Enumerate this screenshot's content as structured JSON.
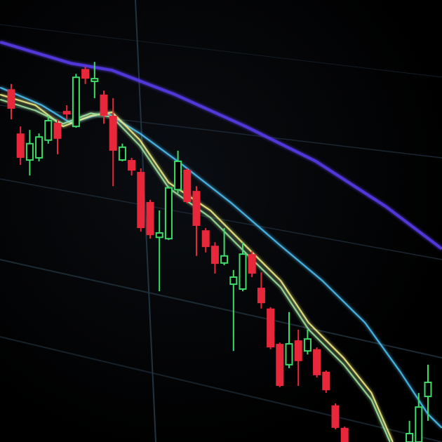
{
  "chart_data": {
    "type": "candlestick",
    "title": "",
    "xlabel": "",
    "ylabel": "",
    "ylim": [
      0,
      100
    ],
    "grid": true,
    "colors": {
      "up": "#3ddc6a",
      "down": "#e8283a",
      "background": "#000000",
      "grid": "#1c2a33"
    },
    "candles": [
      {
        "o": 79.8,
        "h": 81,
        "l": 73,
        "c": 75.4
      },
      {
        "o": 69.8,
        "h": 71.4,
        "l": 62.7,
        "c": 64.3
      },
      {
        "o": 63.8,
        "h": 70.6,
        "l": 60.3,
        "c": 67.5
      },
      {
        "o": 64.3,
        "h": 69.8,
        "l": 63.5,
        "c": 69
      },
      {
        "o": 68.3,
        "h": 73.8,
        "l": 67.5,
        "c": 72.7
      },
      {
        "o": 72.2,
        "h": 73,
        "l": 65.1,
        "c": 68.6
      },
      {
        "o": 74.9,
        "h": 76.2,
        "l": 73,
        "c": 74.1
      },
      {
        "o": 71.4,
        "h": 83.3,
        "l": 71.1,
        "c": 82.5
      },
      {
        "o": 84.4,
        "h": 84.9,
        "l": 81,
        "c": 82.2
      },
      {
        "o": 81.6,
        "h": 86,
        "l": 77.8,
        "c": 82.2
      },
      {
        "o": 78.6,
        "h": 79.5,
        "l": 72,
        "c": 73.8
      },
      {
        "o": 73.8,
        "h": 77.8,
        "l": 57.9,
        "c": 65.9
      },
      {
        "o": 63.8,
        "h": 67.5,
        "l": 63.5,
        "c": 66.7
      },
      {
        "o": 63.8,
        "h": 64.3,
        "l": 60.3,
        "c": 61.4
      },
      {
        "o": 61.1,
        "h": 61.9,
        "l": 47.6,
        "c": 48.4
      },
      {
        "o": 54.3,
        "h": 54.8,
        "l": 46,
        "c": 46.8
      },
      {
        "o": 46.3,
        "h": 52.4,
        "l": 34.1,
        "c": 47.3
      },
      {
        "o": 46,
        "h": 57.9,
        "l": 45.7,
        "c": 57.5
      },
      {
        "o": 57.1,
        "h": 65.9,
        "l": 56.3,
        "c": 63.5
      },
      {
        "o": 61.6,
        "h": 61.9,
        "l": 54,
        "c": 54.3
      },
      {
        "o": 56.8,
        "h": 57.9,
        "l": 42.1,
        "c": 48.9
      },
      {
        "o": 47.9,
        "h": 48.4,
        "l": 42.9,
        "c": 44.1
      },
      {
        "o": 44.4,
        "h": 45.2,
        "l": 38.1,
        "c": 40.3
      },
      {
        "o": 40.5,
        "h": 48.4,
        "l": 40,
        "c": 42.1
      },
      {
        "o": 35.7,
        "h": 38.9,
        "l": 20.6,
        "c": 37.3
      },
      {
        "o": 34.6,
        "h": 45.2,
        "l": 34.1,
        "c": 42.5
      },
      {
        "o": 42.5,
        "h": 43.2,
        "l": 37.3,
        "c": 38.1
      },
      {
        "o": 34.9,
        "h": 38.4,
        "l": 30.2,
        "c": 31.4
      },
      {
        "o": 30.2,
        "h": 30.5,
        "l": 21,
        "c": 21.4
      },
      {
        "o": 22.2,
        "h": 22.5,
        "l": 12.4,
        "c": 12.7
      },
      {
        "o": 17.5,
        "h": 29.4,
        "l": 16.7,
        "c": 22.2
      },
      {
        "o": 23,
        "h": 25.4,
        "l": 12.7,
        "c": 18.3
      },
      {
        "o": 20.6,
        "h": 25.4,
        "l": 19.8,
        "c": 23.3
      },
      {
        "o": 21,
        "h": 21.4,
        "l": 14.6,
        "c": 15.1
      },
      {
        "o": 15.9,
        "h": 16.2,
        "l": 11.1,
        "c": 11.7
      },
      {
        "o": 8.3,
        "h": 8.7,
        "l": 2.9,
        "c": 3.2
      },
      {
        "o": 3.2,
        "h": 3.5,
        "l": 0,
        "c": 0
      },
      null,
      null,
      null,
      null,
      null,
      null,
      {
        "o": 0,
        "h": 4.8,
        "l": 0,
        "c": 1.9
      },
      {
        "o": 0,
        "h": 11.1,
        "l": 0,
        "c": 7.9
      },
      {
        "o": 10.3,
        "h": 17.5,
        "l": 4.8,
        "c": 13.5
      }
    ],
    "ma_lines": [
      {
        "color": "#5a3df0",
        "points": [
          [
            -1.2,
            90.5
          ],
          [
            6.4,
            85.7
          ],
          [
            10.9,
            84.1
          ],
          [
            17.7,
            78.6
          ],
          [
            25.3,
            71.4
          ],
          [
            32.9,
            63.5
          ],
          [
            40.5,
            53.2
          ],
          [
            46.5,
            43.7
          ]
        ]
      },
      {
        "color": "#4fc3f7",
        "points": [
          [
            -1.2,
            80.2
          ],
          [
            3.3,
            76.2
          ],
          [
            6.4,
            72.2
          ],
          [
            10.2,
            74.6
          ],
          [
            13.9,
            69.8
          ],
          [
            18.5,
            62.7
          ],
          [
            23.8,
            54
          ],
          [
            29.1,
            44.4
          ],
          [
            33.6,
            36.5
          ],
          [
            38.2,
            27
          ],
          [
            42,
            15.9
          ],
          [
            45,
            6.3
          ],
          [
            46.5,
            3.2
          ]
        ]
      },
      {
        "color": "#f3f08a",
        "points": [
          [
            -1.2,
            78.6
          ],
          [
            2.6,
            76.2
          ],
          [
            5.6,
            71.4
          ],
          [
            8.6,
            73.8
          ],
          [
            10.9,
            74.6
          ],
          [
            13.9,
            68.3
          ],
          [
            17,
            58.7
          ],
          [
            21.5,
            52.4
          ],
          [
            25.3,
            44.4
          ],
          [
            29.1,
            36.5
          ],
          [
            32.1,
            27
          ],
          [
            35.9,
            19
          ],
          [
            38.9,
            11.1
          ],
          [
            41.2,
            0
          ]
        ]
      },
      {
        "color": "#9fe3a0",
        "points": [
          [
            -1.2,
            77.5
          ],
          [
            2.6,
            75
          ],
          [
            5.6,
            72
          ],
          [
            8.6,
            74.4
          ],
          [
            10.9,
            73.5
          ],
          [
            13.9,
            67
          ],
          [
            17,
            57.5
          ],
          [
            21.5,
            50.8
          ],
          [
            25.3,
            42.8
          ],
          [
            29.1,
            35
          ],
          [
            32.1,
            25.5
          ],
          [
            35.9,
            17.5
          ],
          [
            38.9,
            9.5
          ],
          [
            40.9,
            0
          ]
        ]
      }
    ]
  }
}
